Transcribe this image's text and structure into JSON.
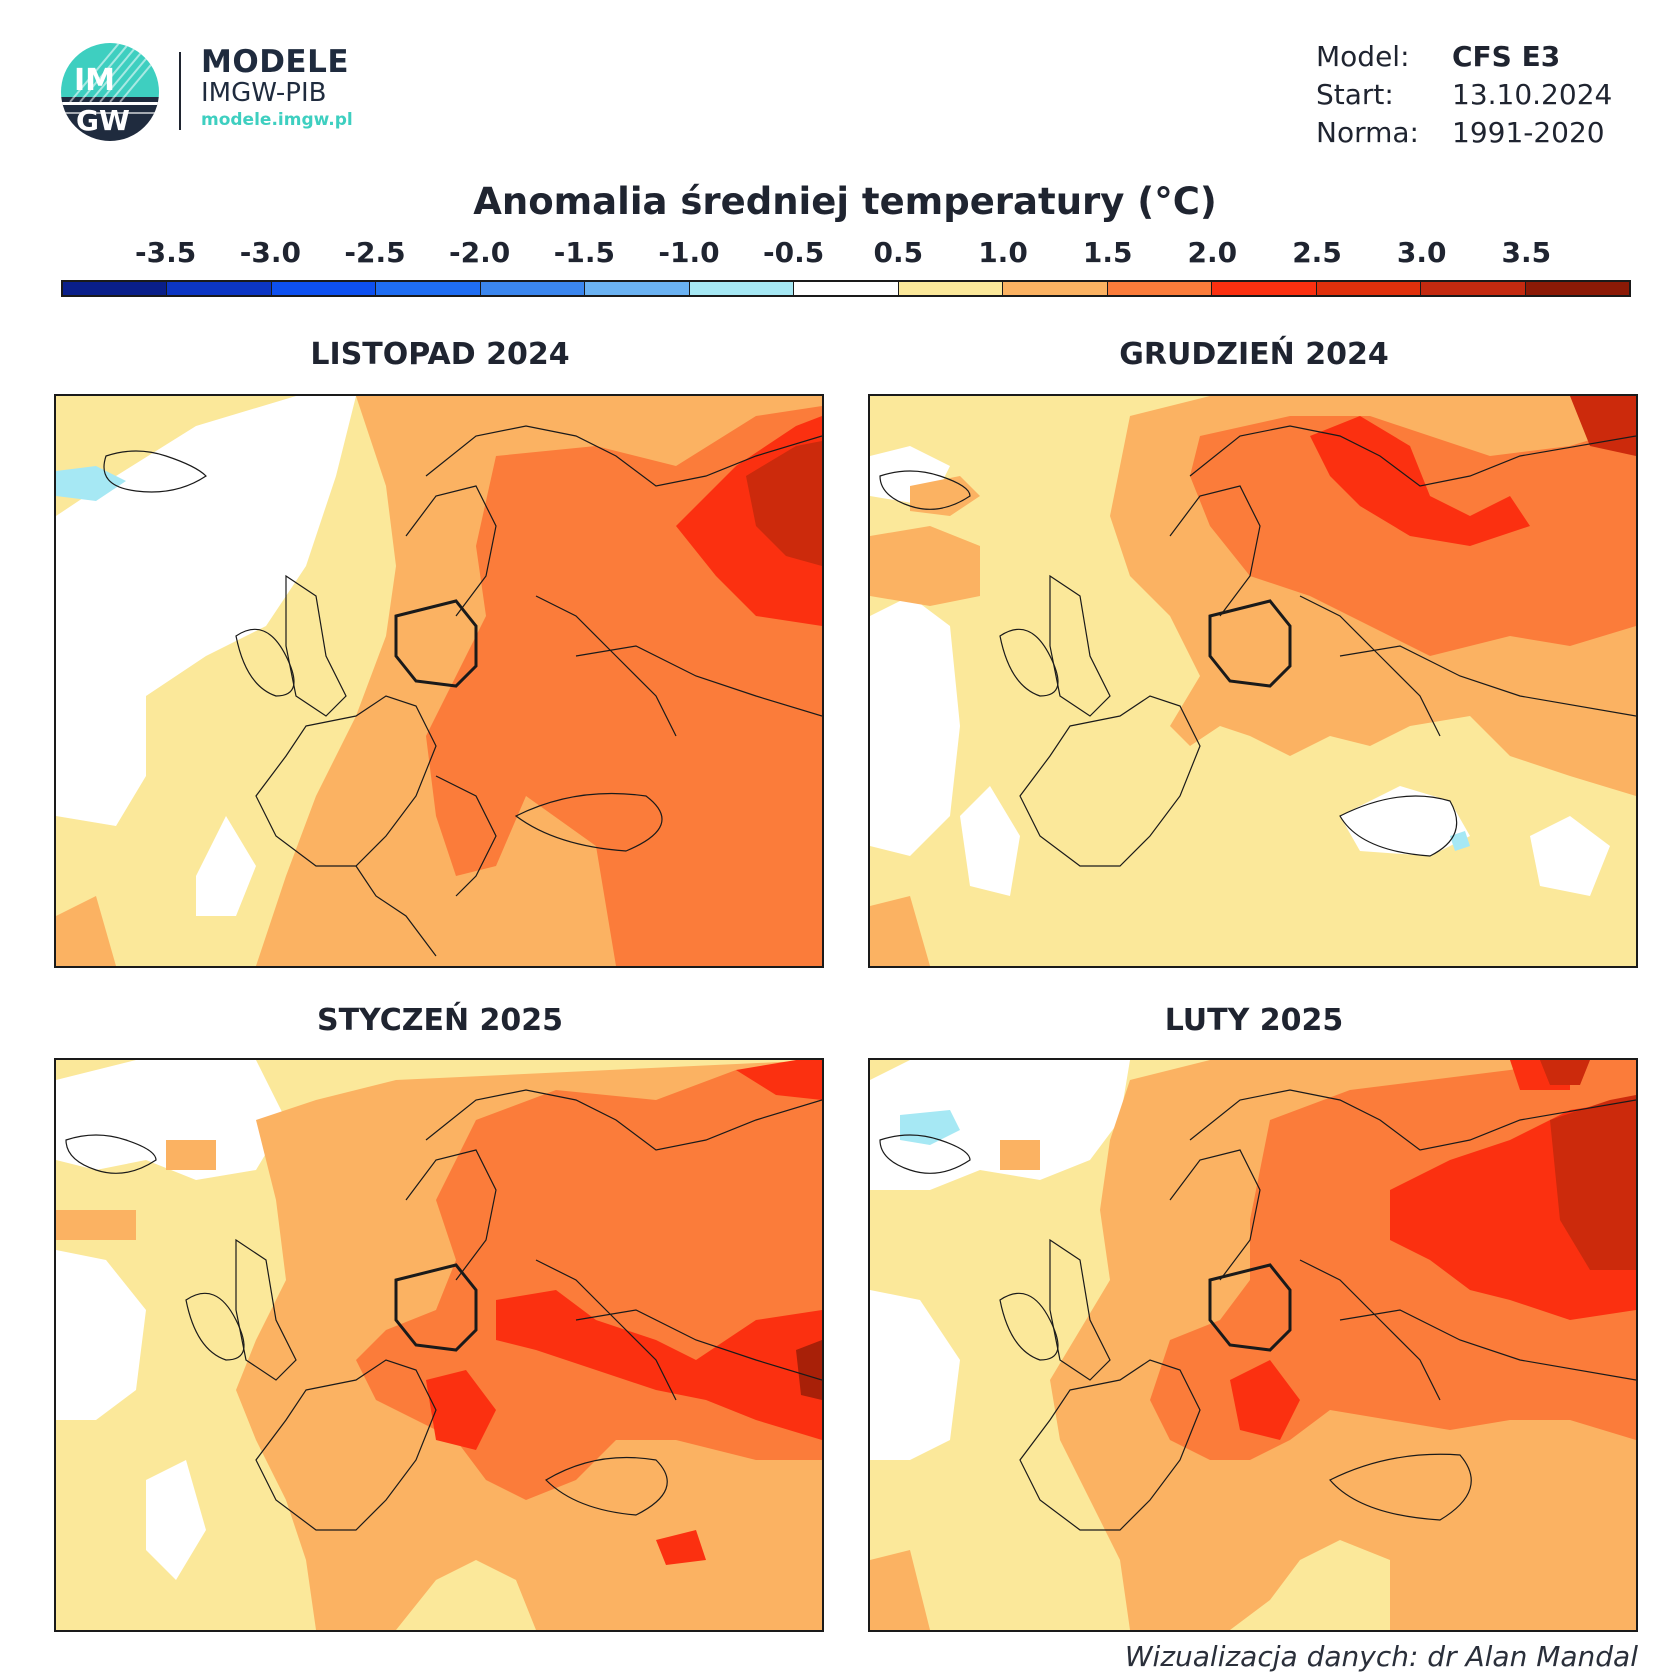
{
  "header": {
    "logo_text_top": "IM",
    "logo_text_bottom": "GW",
    "brand_line1": "MODELE",
    "brand_line2": "IMGW-PIB",
    "brand_url": "modele.imgw.pl",
    "meta": [
      {
        "key": "Model:",
        "value": "CFS E3",
        "bold": true
      },
      {
        "key": "Start:",
        "value": "13.10.2024",
        "bold": false
      },
      {
        "key": "Norma:",
        "value": "1991-2020",
        "bold": false
      }
    ]
  },
  "title": "Anomalia średniej temperatury (°C)",
  "colorbar": {
    "tick_labels": [
      "-3.5",
      "-3.0",
      "-2.5",
      "-2.0",
      "-1.5",
      "-1.0",
      "-0.5",
      "0.5",
      "1.0",
      "1.5",
      "2.0",
      "2.5",
      "3.0",
      "3.5"
    ],
    "colors": [
      "#0a1f8a",
      "#0c36c4",
      "#0e50f0",
      "#1f6df2",
      "#3b86ee",
      "#6bb2f2",
      "#a6e8f4",
      "#ffffff",
      "#fbe89a",
      "#fbb262",
      "#fb7c3a",
      "#fb3010",
      "#e0300c",
      "#c42a10",
      "#8c1a06"
    ]
  },
  "maps": [
    {
      "title": "LISTOPAD 2024",
      "dominant_class": "1.5 – 2.0",
      "max_class": "3.0 – 3.5"
    },
    {
      "title": "GRUDZIEŃ 2024",
      "dominant_class": "1.0 – 1.5",
      "max_class": "3.0 – 3.5"
    },
    {
      "title": "STYCZEŃ 2025",
      "dominant_class": "1.5 – 2.0",
      "max_class": "3.0 – 3.5"
    },
    {
      "title": "LUTY 2025",
      "dominant_class": "1.5 – 2.0",
      "max_class": "3.0 – 3.5"
    }
  ],
  "palette": {
    "c_m10": "#a6e8f4",
    "c_0": "#ffffff",
    "c_05": "#fbe89a",
    "c_10": "#fbb262",
    "c_15": "#fb7c3a",
    "c_20": "#fb3010",
    "c_25": "#cc2a0c",
    "c_30": "#a82008"
  },
  "footer": {
    "credit": "Wizualizacja danych: dr Alan Mandal"
  }
}
